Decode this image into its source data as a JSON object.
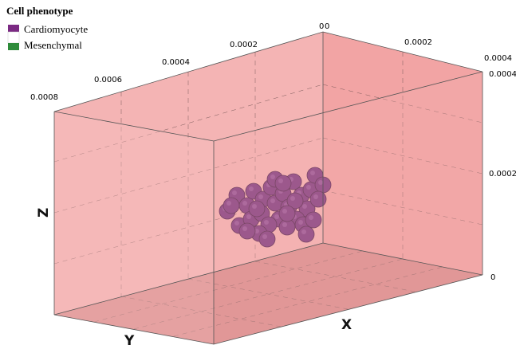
{
  "legend": {
    "title": "Cell phenotype",
    "items": [
      "Cardiomyocyte",
      "Mesenchymal"
    ]
  },
  "axes": {
    "x_label": "X",
    "y_label": "Y",
    "z_label": "Z",
    "y_ticks": [
      "0.0008",
      "0.0006",
      "0.0004",
      "0.0002",
      "0"
    ],
    "x_ticks": [
      "0",
      "0.0002",
      "0.0004"
    ],
    "z_ticks": [
      "0.0004",
      "0.0002",
      "0"
    ]
  }
}
